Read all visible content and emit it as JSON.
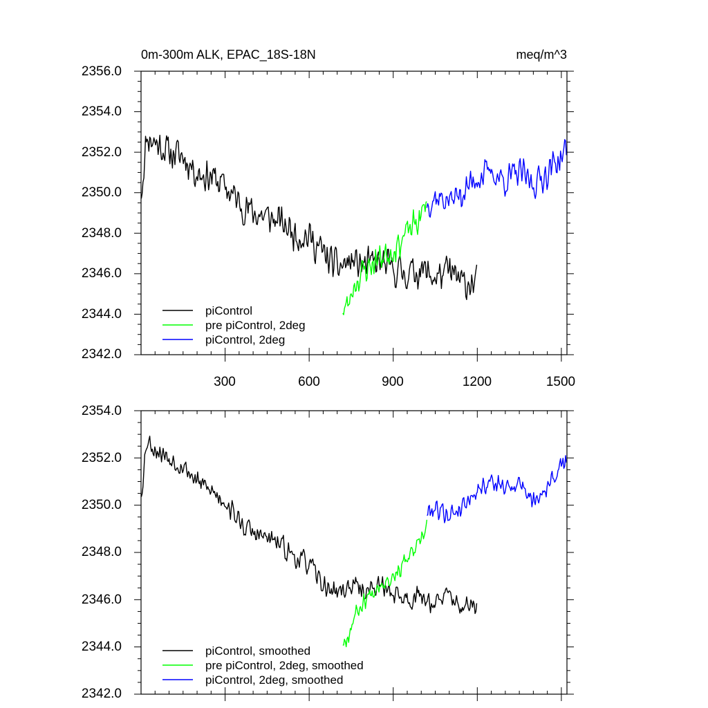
{
  "chart_data": [
    {
      "type": "line",
      "title": "0m-300m ALK, EPAC_18S-18N",
      "units": "meq/m^3",
      "xlim": [
        0,
        1520
      ],
      "ylim": [
        2342,
        2356
      ],
      "yticks": [
        "2342.0",
        "2344.0",
        "2346.0",
        "2348.0",
        "2350.0",
        "2352.0",
        "2354.0",
        "2356.0"
      ],
      "xticks": [
        "300",
        "600",
        "900",
        "1200",
        "1500"
      ],
      "legend": [
        "piControl",
        "pre piControl, 2deg",
        "piControl, 2deg"
      ],
      "legend_position": "bottom-left",
      "series": [
        {
          "name": "piControl",
          "color": "#000000",
          "x_start": 1,
          "x_end": 1200,
          "anchors_x": [
            1,
            20,
            50,
            100,
            150,
            200,
            250,
            300,
            350,
            400,
            450,
            500,
            550,
            600,
            650,
            700,
            750,
            800,
            850,
            900,
            950,
            1000,
            1050,
            1100,
            1150,
            1200
          ],
          "anchors_y": [
            2350.0,
            2352.8,
            2352.5,
            2352.0,
            2351.8,
            2351.0,
            2350.8,
            2350.3,
            2349.5,
            2349.0,
            2348.8,
            2348.5,
            2348.0,
            2347.8,
            2347.0,
            2346.3,
            2346.6,
            2346.4,
            2346.5,
            2346.2,
            2346.0,
            2346.2,
            2345.8,
            2346.1,
            2345.5,
            2345.6
          ],
          "noise": 1.0,
          "seed": 11
        },
        {
          "name": "pre piControl, 2deg",
          "color": "#00ff00",
          "x_start": 720,
          "x_end": 1020,
          "anchors_x": [
            720,
            740,
            760,
            800,
            850,
            900,
            950,
            1000,
            1020
          ],
          "anchors_y": [
            2344.3,
            2344.4,
            2345.5,
            2346.2,
            2346.8,
            2347.2,
            2348.0,
            2348.8,
            2349.6
          ],
          "noise": 0.9,
          "seed": 23
        },
        {
          "name": "piControl, 2deg",
          "color": "#0000ff",
          "x_start": 1020,
          "x_end": 1520,
          "anchors_x": [
            1020,
            1050,
            1100,
            1150,
            1200,
            1250,
            1300,
            1350,
            1400,
            1450,
            1500,
            1520
          ],
          "anchors_y": [
            2349.5,
            2349.8,
            2349.6,
            2350.0,
            2350.8,
            2351.0,
            2350.6,
            2351.0,
            2350.4,
            2351.0,
            2351.8,
            2352.1
          ],
          "noise": 0.9,
          "seed": 37
        }
      ]
    },
    {
      "type": "line",
      "title": "",
      "xlim": [
        0,
        1520
      ],
      "ylim": [
        2342,
        2354
      ],
      "yticks": [
        "2342.0",
        "2344.0",
        "2346.0",
        "2348.0",
        "2350.0",
        "2352.0",
        "2354.0"
      ],
      "legend": [
        "piControl, smoothed",
        "pre piControl, 2deg, smoothed",
        "piControl, 2deg, smoothed"
      ],
      "legend_position": "bottom-left",
      "series": [
        {
          "name": "piControl, smoothed",
          "color": "#000000",
          "x_start": 1,
          "x_end": 1200,
          "anchors_x": [
            1,
            20,
            50,
            100,
            150,
            200,
            250,
            300,
            350,
            400,
            450,
            500,
            550,
            600,
            650,
            700,
            750,
            800,
            850,
            900,
            950,
            1000,
            1050,
            1100,
            1150,
            1200
          ],
          "anchors_y": [
            2350.5,
            2352.8,
            2352.4,
            2352.0,
            2351.7,
            2351.0,
            2350.6,
            2350.2,
            2349.3,
            2348.8,
            2348.6,
            2348.3,
            2347.8,
            2347.5,
            2346.6,
            2346.3,
            2346.6,
            2346.4,
            2346.6,
            2346.3,
            2346.0,
            2346.2,
            2345.8,
            2346.2,
            2345.6,
            2345.8
          ],
          "noise": 0.55,
          "seed": 53
        },
        {
          "name": "pre piControl, 2deg, smoothed",
          "color": "#00ff00",
          "x_start": 720,
          "x_end": 1020,
          "anchors_x": [
            720,
            740,
            760,
            800,
            850,
            900,
            950,
            1000,
            1020
          ],
          "anchors_y": [
            2344.2,
            2344.5,
            2345.3,
            2346.0,
            2346.7,
            2347.0,
            2347.7,
            2348.4,
            2349.2
          ],
          "noise": 0.45,
          "seed": 67
        },
        {
          "name": "piControl, 2deg, smoothed",
          "color": "#0000ff",
          "x_start": 1020,
          "x_end": 1520,
          "anchors_x": [
            1020,
            1050,
            1100,
            1150,
            1200,
            1250,
            1300,
            1350,
            1400,
            1450,
            1500,
            1520
          ],
          "anchors_y": [
            2349.7,
            2349.9,
            2349.6,
            2350.0,
            2350.7,
            2351.0,
            2350.7,
            2351.0,
            2350.2,
            2350.8,
            2351.6,
            2351.9
          ],
          "noise": 0.5,
          "seed": 79
        }
      ]
    }
  ]
}
